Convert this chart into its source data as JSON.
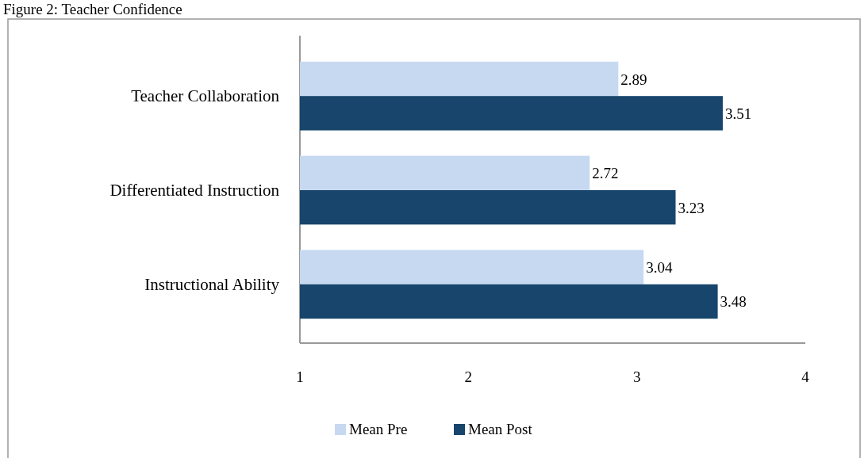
{
  "chart_data": {
    "type": "bar",
    "orientation": "horizontal",
    "title": "Figure 2: Teacher Confidence",
    "categories": [
      "Teacher Collaboration",
      "Differentiated Instruction",
      "Instructional Ability"
    ],
    "series": [
      {
        "name": "Mean Pre",
        "color": "#c6d9f1",
        "values": [
          2.89,
          2.72,
          3.04
        ]
      },
      {
        "name": "Mean Post",
        "color": "#17456b",
        "values": [
          3.51,
          3.23,
          3.48
        ]
      }
    ],
    "xlim": [
      1,
      4
    ],
    "xticks": [
      1,
      2,
      3,
      4
    ],
    "data_labels": true,
    "legend": "bottom"
  }
}
